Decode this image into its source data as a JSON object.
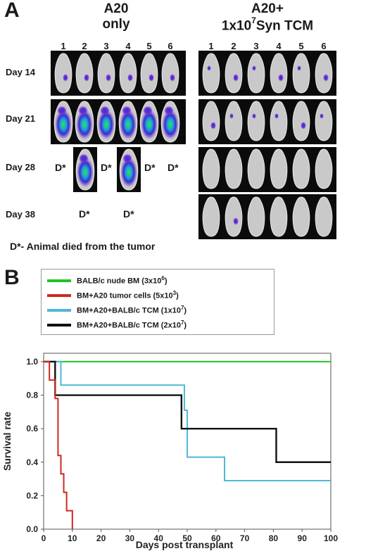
{
  "panelA": {
    "letter": "A",
    "group1": {
      "line1": "A20",
      "line2": "only"
    },
    "group2": {
      "line1": "A20+",
      "line2_pre": "1x10",
      "line2_sup": "7",
      "line2_post": "Syn TCM"
    },
    "columns": [
      "1",
      "2",
      "3",
      "4",
      "5",
      "6"
    ],
    "days": [
      "Day 14",
      "Day 21",
      "Day 28",
      "Day 38"
    ],
    "dead_mark": "D*",
    "footnote": "D*- Animal died from the tumor"
  },
  "panelB": {
    "letter": "B",
    "legend": [
      {
        "pre": "BALB/c nude BM (3x10",
        "sup": "6",
        "post": ")",
        "color": "#22c422"
      },
      {
        "pre": "BM+A20 tumor  cells (5x10",
        "sup": "3",
        "post": ")",
        "color": "#cc2a1e"
      },
      {
        "pre": "BM+A20+BALB/c TCM (1x10",
        "sup": "7",
        "post": ")",
        "color": "#4fb7d6"
      },
      {
        "pre": "BM+A20+BALB/c TCM (2x10",
        "sup": "7",
        "post": ")",
        "color": "#111111"
      }
    ]
  },
  "chart_data": {
    "type": "line",
    "xlabel": "Days post transplant",
    "ylabel": "Survival rate",
    "xlim": [
      0,
      100
    ],
    "ylim": [
      0,
      1.05
    ],
    "xticks": [
      0,
      10,
      20,
      30,
      40,
      50,
      60,
      70,
      80,
      90,
      100
    ],
    "yticks": [
      0.0,
      0.2,
      0.4,
      0.6,
      0.8,
      1.0
    ],
    "series": [
      {
        "name": "BALB/c nude BM (3x10^6)",
        "color": "#22c422",
        "steps": [
          [
            0,
            1.0
          ],
          [
            100,
            1.0
          ]
        ]
      },
      {
        "name": "BM+A20 tumor cells (5x10^3)",
        "color": "#cc2a1e",
        "steps": [
          [
            0,
            1.0
          ],
          [
            2,
            0.89
          ],
          [
            4,
            0.78
          ],
          [
            5,
            0.44
          ],
          [
            6,
            0.33
          ],
          [
            7,
            0.22
          ],
          [
            8,
            0.11
          ],
          [
            10,
            0.0
          ]
        ],
        "x_offset_note": ""
      },
      {
        "name": "BM+A20+BALB/c TCM (1x10^7)",
        "color": "#4fb7d6",
        "steps": [
          [
            0,
            1.0
          ],
          [
            6,
            0.86
          ],
          [
            49,
            0.71
          ],
          [
            50,
            0.43
          ],
          [
            63,
            0.29
          ],
          [
            100,
            0.29
          ]
        ]
      },
      {
        "name": "BM+A20+BALB/c TCM (2x10^7)",
        "color": "#111111",
        "steps": [
          [
            0,
            1.0
          ],
          [
            4,
            0.8
          ],
          [
            27,
            0.8
          ],
          [
            48,
            0.6
          ],
          [
            81,
            0.4
          ],
          [
            100,
            0.4
          ]
        ]
      }
    ]
  }
}
